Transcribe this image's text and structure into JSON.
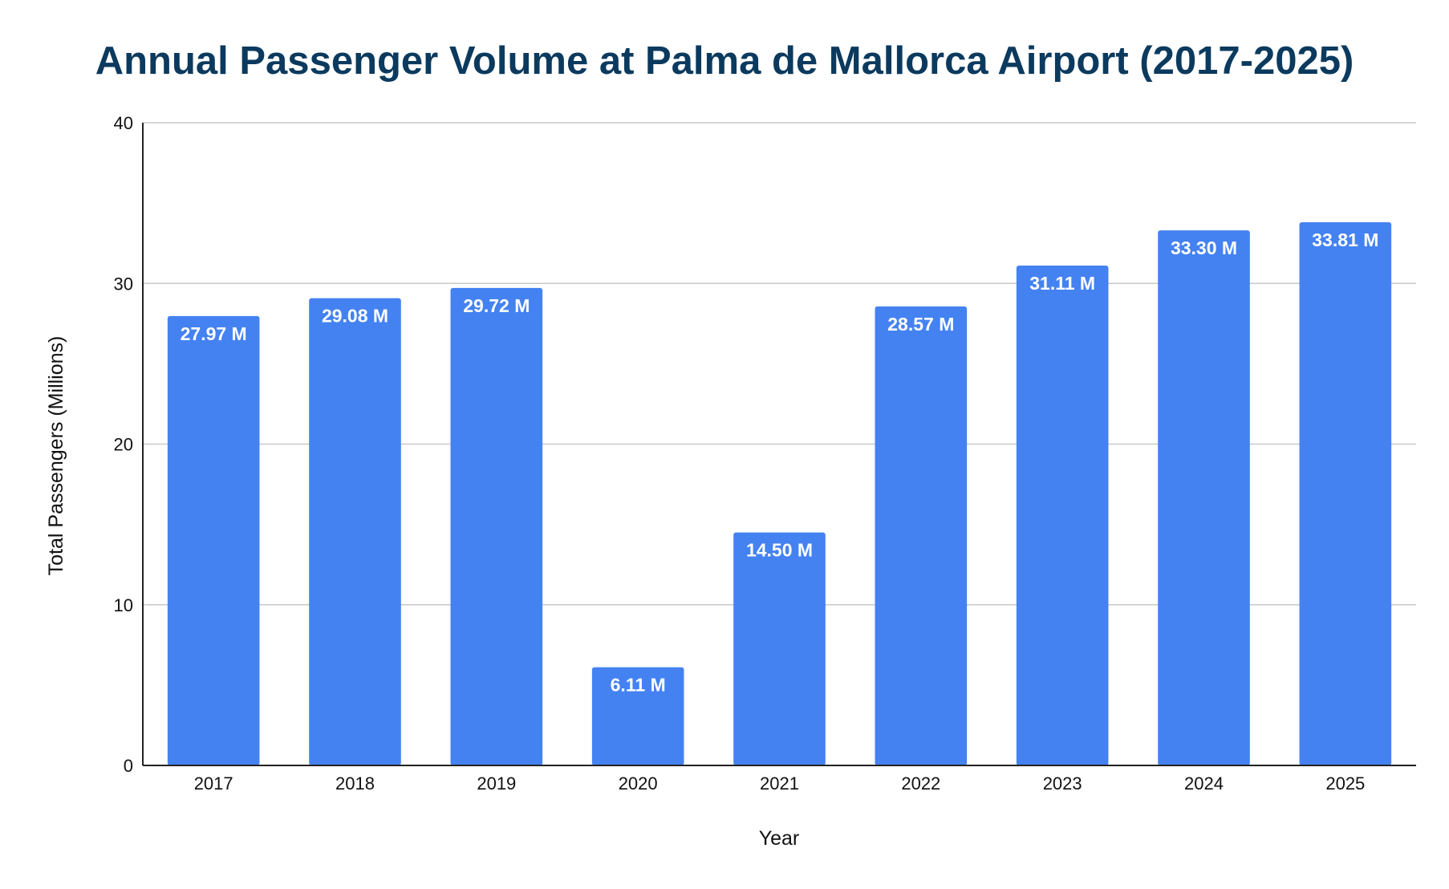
{
  "chart_data": {
    "type": "bar",
    "title": "Annual Passenger Volume at Palma de Mallorca Airport (2017-2025)",
    "xlabel": "Year",
    "ylabel": "Total Passengers (Millions)",
    "categories": [
      "2017",
      "2018",
      "2019",
      "2020",
      "2021",
      "2022",
      "2023",
      "2024",
      "2025"
    ],
    "values": [
      27.97,
      29.08,
      29.72,
      6.11,
      14.5,
      28.57,
      31.11,
      33.3,
      33.81
    ],
    "data_labels": [
      "27.97 M",
      "29.08 M",
      "29.72 M",
      "6.11 M",
      "14.50 M",
      "28.57 M",
      "31.11 M",
      "33.30 M",
      "33.81 M"
    ],
    "ylim": [
      0,
      40
    ],
    "yticks": [
      "0",
      "10",
      "20",
      "30",
      "40"
    ],
    "grid": true,
    "legend": "none",
    "bar_color": "#4482f2",
    "title_color": "#0b3a5e"
  }
}
